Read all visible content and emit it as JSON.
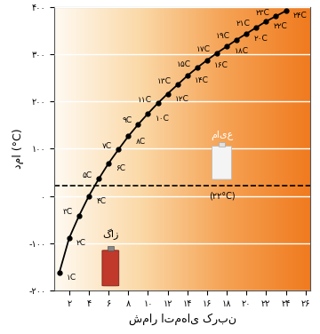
{
  "chart_data": {
    "type": "line",
    "x_label": "شمار اتم‌های کربن",
    "y_label": "دما (°C)",
    "x": [
      1,
      2,
      3,
      4,
      5,
      6,
      7,
      8,
      9,
      10,
      11,
      12,
      13,
      14,
      15,
      16,
      17,
      18,
      19,
      20,
      21,
      22,
      23,
      24
    ],
    "values": [
      -162,
      -89,
      -42,
      0,
      36,
      69,
      98,
      126,
      151,
      174,
      196,
      216,
      235,
      254,
      271,
      287,
      302,
      316,
      330,
      343,
      356,
      369,
      380,
      391
    ],
    "point_labels": [
      "۱C",
      "۲C",
      "۳C",
      "۴C",
      "۵C",
      "۶C",
      "۷C",
      "۸C",
      "۹C",
      "۱۰C",
      "۱۱C",
      "۱۲C",
      "۱۳C",
      "۱۴C",
      "۱۵C",
      "۱۶C",
      "۱۷C",
      "۱۸C",
      "۱۹C",
      "۲۰C",
      "۲۱C",
      "۲۲C",
      "۲۳C",
      "۲۴C"
    ],
    "color": "#000000",
    "marker": "o",
    "line_style": "solid",
    "xlim": [
      0.5,
      26.5
    ],
    "ylim": [
      -200,
      400
    ],
    "xticks": [
      {
        "value": 2,
        "label": "۲"
      },
      {
        "value": 4,
        "label": "۴"
      },
      {
        "value": 6,
        "label": "۶"
      },
      {
        "value": 8,
        "label": "۸"
      },
      {
        "value": 10,
        "label": "۱۰"
      },
      {
        "value": 12,
        "label": "۱۲"
      },
      {
        "value": 14,
        "label": "۱۴"
      },
      {
        "value": 16,
        "label": "۱۶"
      },
      {
        "value": 18,
        "label": "۱۸"
      },
      {
        "value": 20,
        "label": "۲۰"
      },
      {
        "value": 22,
        "label": "۲۲"
      },
      {
        "value": 24,
        "label": "۲۴"
      },
      {
        "value": 26,
        "label": "۲۶"
      }
    ],
    "yticks": [
      {
        "value": -200,
        "label": "-۲۰۰"
      },
      {
        "value": -100,
        "label": "-۱۰۰"
      },
      {
        "value": 0,
        "label": "۰"
      },
      {
        "value": 100,
        "label": "۱۰۰"
      },
      {
        "value": 200,
        "label": "۲۰۰"
      },
      {
        "value": 300,
        "label": "۳۰۰"
      },
      {
        "value": 400,
        "label": "۴۰۰"
      }
    ],
    "grid": true,
    "reference_line": {
      "value": 22,
      "label": "(۲۲°C)",
      "line_style": "dashed"
    },
    "region_labels": {
      "above": "مایع",
      "below": "گاز"
    }
  }
}
